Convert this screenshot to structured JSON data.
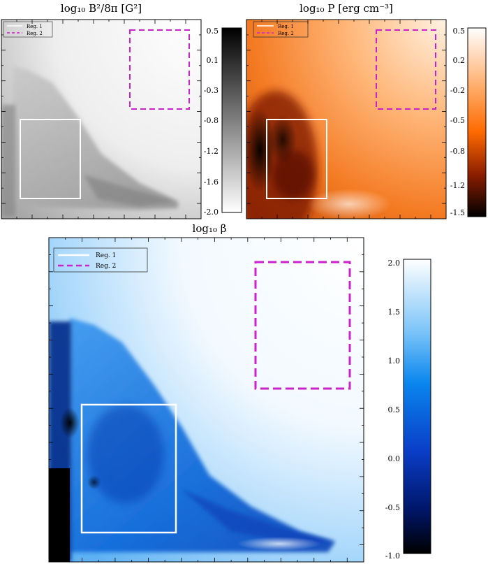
{
  "chart_data": [
    {
      "type": "heatmap",
      "title": "log₁₀ B²/8π [G²]",
      "colormap": [
        "#000000",
        "#ffffff"
      ],
      "colorbar": {
        "ticks": [
          "0.5",
          "0.1",
          "-0.3",
          "-0.8",
          "-1.2",
          "-1.6",
          "-2.0"
        ],
        "range": [
          -2.0,
          0.5
        ]
      },
      "legend": {
        "placement": "top-left",
        "entries": [
          {
            "label": "Reg. 1",
            "color": "#ffffff",
            "style": "solid"
          },
          {
            "label": "Reg. 2",
            "color": "#cc22cc",
            "style": "dashed"
          }
        ]
      }
    },
    {
      "type": "heatmap",
      "title": "log₁₀ P [erg cm⁻³]",
      "colormap": [
        "#000000",
        "#ff6a00",
        "#ffffff"
      ],
      "colorbar": {
        "ticks": [
          "0.5",
          "0.2",
          "-0.2",
          "-0.5",
          "-0.8",
          "-1.2",
          "-1.5"
        ],
        "range": [
          -1.5,
          0.5
        ]
      },
      "legend": {
        "placement": "top-left",
        "entries": [
          {
            "label": "Reg. 1",
            "color": "#ffffff",
            "style": "solid"
          },
          {
            "label": "Reg. 2",
            "color": "#cc22cc",
            "style": "dashed"
          }
        ]
      }
    },
    {
      "type": "heatmap",
      "title": "log₁₀ β",
      "colormap": [
        "#000000",
        "#0a84f0",
        "#ffffff"
      ],
      "colorbar": {
        "ticks": [
          "2.0",
          "1.5",
          "1.0",
          "0.5",
          "0.0",
          "-0.5",
          "-1.0"
        ],
        "range": [
          -1.0,
          2.0
        ]
      },
      "legend": {
        "placement": "top-left",
        "entries": [
          {
            "label": "Reg. 1",
            "color": "#ffffff",
            "style": "solid"
          },
          {
            "label": "Reg. 2",
            "color": "#cc22cc",
            "style": "dashed"
          }
        ]
      }
    }
  ]
}
